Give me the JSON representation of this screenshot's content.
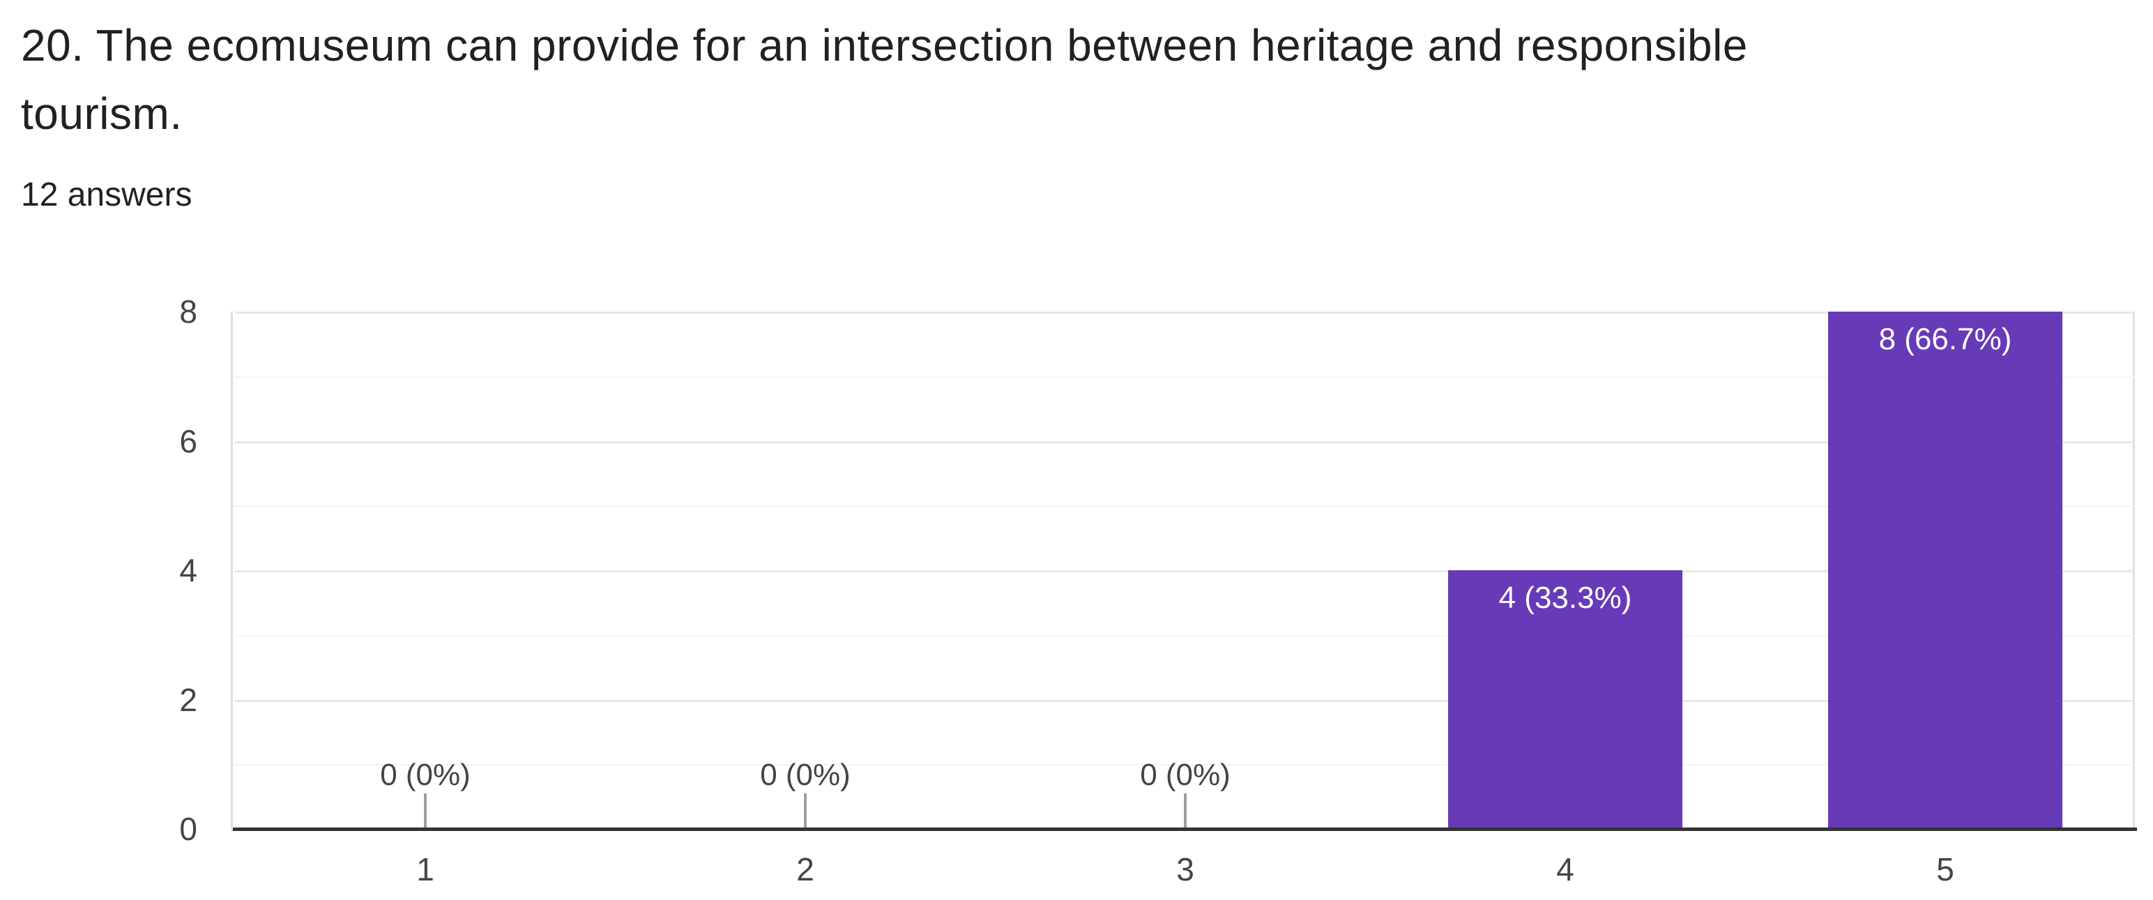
{
  "header": {
    "title_lines": [
      "20. The ecomuseum can provide for an intersection between heritage and responsible",
      "tourism."
    ],
    "answers_count": "12 answers"
  },
  "chart_data": {
    "type": "bar",
    "title": "20. The ecomuseum can provide for an intersection between heritage and responsible tourism.",
    "subtitle": "12 answers",
    "categories": [
      "1",
      "2",
      "3",
      "4",
      "5"
    ],
    "values": [
      0,
      0,
      0,
      4,
      8
    ],
    "bar_labels": [
      "0 (0%)",
      "0 (0%)",
      "0 (0%)",
      "4 (33.3%)",
      "8 (66.7%)"
    ],
    "percentages": [
      0,
      0,
      0,
      33.3,
      66.7
    ],
    "total_answers": 12,
    "yticks": [
      0,
      2,
      4,
      6,
      8
    ],
    "ylim": [
      0,
      8
    ],
    "xlabel": "",
    "ylabel": "",
    "legend": "none",
    "grid": true,
    "colors": {
      "bar": "#673ab7",
      "bar_label_text": "#ffffff",
      "axis_text": "#444444",
      "baseline": "#333333",
      "gridline_major": "#e8e8e8",
      "gridline_minor": "#f4f4f4",
      "plot_border": "#e0e0e0",
      "tick_stub": "#9e9e9e",
      "title_text": "#212121"
    }
  }
}
